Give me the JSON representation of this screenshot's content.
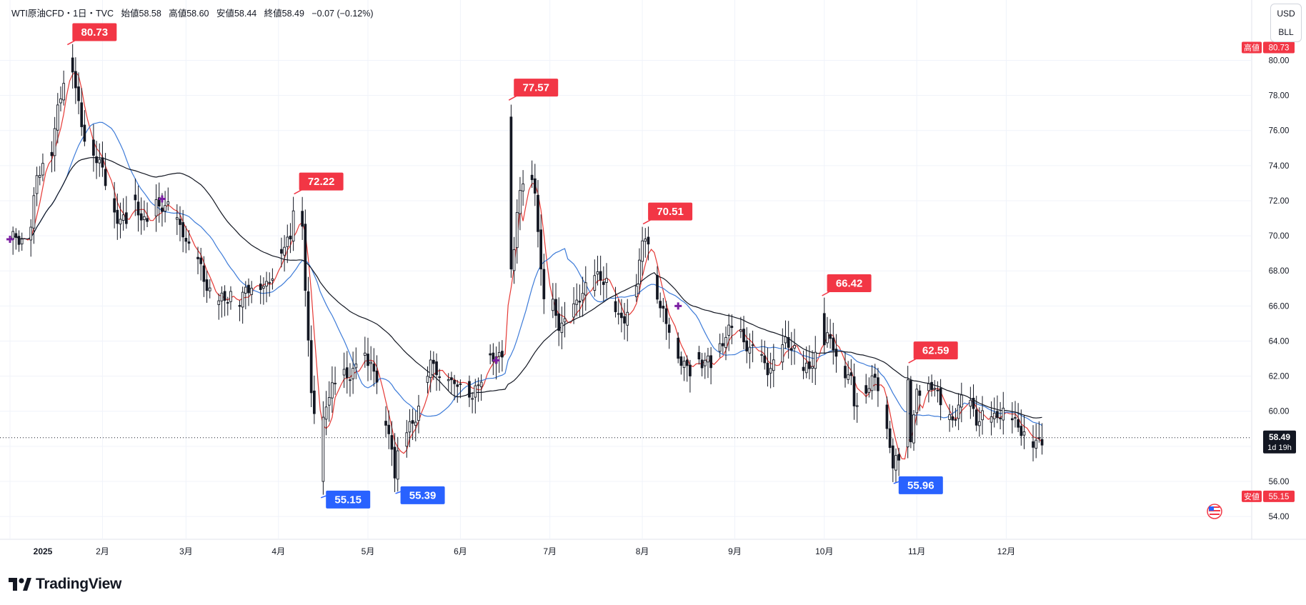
{
  "legend": {
    "symbol": "WTI原油CFD・1日・TVC",
    "open_label": "始値",
    "open": "58.58",
    "high_label": "高値",
    "high": "58.60",
    "low_label": "安値",
    "low": "58.44",
    "close_label": "終値",
    "close": "58.49",
    "change": "−0.07 (−0.12%)"
  },
  "units": {
    "currency": "USD",
    "unit": "BLL"
  },
  "brand": {
    "name": "TradingView"
  },
  "colors": {
    "up": "#131722",
    "down": "#131722",
    "ma_fast": "#e53935",
    "ma_mid": "#3d7bd8",
    "ma_slow": "#131722",
    "high_label": "#f23645",
    "low_label": "#2962ff",
    "marker": "#7b1fa2"
  },
  "chart_data": {
    "type": "candlestick",
    "x_labels": [
      {
        "label": "2025",
        "day": 0
      },
      {
        "label": "2月",
        "day": 31
      },
      {
        "label": "3月",
        "day": 59
      },
      {
        "label": "4月",
        "day": 90
      },
      {
        "label": "5月",
        "day": 120
      },
      {
        "label": "6月",
        "day": 151
      },
      {
        "label": "7月",
        "day": 181
      },
      {
        "label": "8月",
        "day": 212
      },
      {
        "label": "9月",
        "day": 243
      },
      {
        "label": "10月",
        "day": 273
      },
      {
        "label": "11月",
        "day": 304
      },
      {
        "label": "12月",
        "day": 334
      }
    ],
    "ylim": [
      52.7,
      82.3
    ],
    "y_ticks": [
      "54.00",
      "56.00",
      "58.00",
      "60.00",
      "62.00",
      "64.00",
      "66.00",
      "68.00",
      "70.00",
      "72.00",
      "74.00",
      "76.00",
      "78.00",
      "80.00"
    ],
    "current": {
      "value": 58.49,
      "label": "58.49",
      "countdown": "1d 19h"
    },
    "high_tag": {
      "label": "高値",
      "value": "80.73"
    },
    "low_tag": {
      "label": "安値",
      "value": "55.15"
    },
    "callouts": [
      {
        "label": "80.73",
        "kind": "high",
        "day": 19,
        "value": 80.73
      },
      {
        "label": "72.22",
        "kind": "high",
        "day": 95,
        "value": 72.22
      },
      {
        "label": "77.57",
        "kind": "high",
        "day": 167,
        "value": 77.57
      },
      {
        "label": "70.51",
        "kind": "high",
        "day": 212,
        "value": 70.51
      },
      {
        "label": "66.42",
        "kind": "high",
        "day": 272,
        "value": 66.42
      },
      {
        "label": "62.59",
        "kind": "high",
        "day": 301,
        "value": 62.59
      },
      {
        "label": "55.15",
        "kind": "low",
        "day": 104,
        "value": 55.15
      },
      {
        "label": "55.39",
        "kind": "low",
        "day": 129,
        "value": 55.39
      },
      {
        "label": "55.96",
        "kind": "low",
        "day": 296,
        "value": 55.96
      }
    ],
    "cross_markers": [
      {
        "day": 0,
        "value": 69.8
      },
      {
        "day": 51,
        "value": 72.1
      },
      {
        "day": 163,
        "value": 62.9
      },
      {
        "day": 224,
        "value": 66.0
      }
    ],
    "anchors": [
      [
        0,
        69.5
      ],
      [
        2,
        69.8
      ],
      [
        5,
        69.7
      ],
      [
        7,
        70.9
      ],
      [
        9,
        73.2
      ],
      [
        12,
        74.3
      ],
      [
        14,
        75.0
      ],
      [
        16,
        77.4
      ],
      [
        18,
        79.0
      ],
      [
        19,
        80.3
      ],
      [
        21,
        79.4
      ],
      [
        23,
        77.3
      ],
      [
        24,
        76.3
      ],
      [
        26,
        75.6
      ],
      [
        28,
        74.8
      ],
      [
        30,
        73.9
      ],
      [
        33,
        72.5
      ],
      [
        35,
        71.5
      ],
      [
        37,
        71.1
      ],
      [
        39,
        70.7
      ],
      [
        41,
        71.8
      ],
      [
        43,
        71.4
      ],
      [
        45,
        71.0
      ],
      [
        47,
        70.9
      ],
      [
        49,
        71.6
      ],
      [
        52,
        71.4
      ],
      [
        54,
        71.8
      ],
      [
        56,
        71.0
      ],
      [
        58,
        70.3
      ],
      [
        60,
        69.0
      ],
      [
        62,
        68.9
      ],
      [
        64,
        68.2
      ],
      [
        66,
        67.4
      ],
      [
        68,
        66.5
      ],
      [
        70,
        66.2
      ],
      [
        72,
        66.1
      ],
      [
        74,
        66.9
      ],
      [
        76,
        66.3
      ],
      [
        78,
        66.6
      ],
      [
        80,
        66.8
      ],
      [
        82,
        67.1
      ],
      [
        84,
        67.4
      ],
      [
        86,
        67.3
      ],
      [
        88,
        67.9
      ],
      [
        90,
        68.6
      ],
      [
        92,
        69.4
      ],
      [
        94,
        69.8
      ],
      [
        96,
        70.8
      ],
      [
        97,
        71.3
      ],
      [
        98,
        70.6
      ],
      [
        99,
        67.1
      ],
      [
        100,
        63.7
      ],
      [
        101,
        60.5
      ],
      [
        102,
        59.9
      ],
      [
        104,
        59.3
      ],
      [
        105,
        59.7
      ],
      [
        106,
        60.8
      ],
      [
        108,
        61.3
      ],
      [
        110,
        61.6
      ],
      [
        112,
        61.9
      ],
      [
        114,
        62.2
      ],
      [
        116,
        62.7
      ],
      [
        118,
        63.4
      ],
      [
        120,
        62.3
      ],
      [
        121,
        62.9
      ],
      [
        123,
        61.3
      ],
      [
        125,
        59.9
      ],
      [
        127,
        58.6
      ],
      [
        129,
        57.6
      ],
      [
        130,
        57.2
      ],
      [
        132,
        58.3
      ],
      [
        133,
        58.8
      ],
      [
        135,
        59.6
      ],
      [
        137,
        60.3
      ],
      [
        139,
        61.6
      ],
      [
        141,
        62.4
      ],
      [
        143,
        62.4
      ],
      [
        145,
        61.9
      ],
      [
        147,
        62.3
      ],
      [
        149,
        61.1
      ],
      [
        151,
        61.6
      ],
      [
        153,
        61.4
      ],
      [
        155,
        61.1
      ],
      [
        157,
        61.6
      ],
      [
        159,
        62.4
      ],
      [
        161,
        63.1
      ],
      [
        163,
        62.9
      ],
      [
        165,
        63.6
      ],
      [
        167,
        65.0
      ],
      [
        168,
        68.0
      ],
      [
        169,
        69.4
      ],
      [
        170,
        71.1
      ],
      [
        172,
        72.9
      ],
      [
        173,
        73.1
      ],
      [
        174,
        73.4
      ],
      [
        176,
        72.9
      ],
      [
        177,
        70.6
      ],
      [
        178,
        67.8
      ],
      [
        179,
        66.1
      ],
      [
        180,
        65.4
      ],
      [
        182,
        65.9
      ],
      [
        184,
        65.1
      ],
      [
        186,
        65.2
      ],
      [
        188,
        65.5
      ],
      [
        190,
        65.9
      ],
      [
        192,
        66.7
      ],
      [
        194,
        67.3
      ],
      [
        196,
        67.9
      ],
      [
        198,
        67.6
      ],
      [
        200,
        67.1
      ],
      [
        202,
        66.3
      ],
      [
        204,
        65.4
      ],
      [
        206,
        65.6
      ],
      [
        208,
        65.9
      ],
      [
        210,
        67.2
      ],
      [
        211,
        68.2
      ],
      [
        212,
        69.2
      ],
      [
        213,
        70.1
      ],
      [
        214,
        69.9
      ],
      [
        215,
        68.4
      ],
      [
        216,
        67.8
      ],
      [
        218,
        65.9
      ],
      [
        220,
        64.8
      ],
      [
        222,
        64.4
      ],
      [
        224,
        63.4
      ],
      [
        226,
        62.8
      ],
      [
        228,
        62.3
      ],
      [
        230,
        62.8
      ],
      [
        232,
        62.7
      ],
      [
        234,
        63.0
      ],
      [
        236,
        62.8
      ],
      [
        238,
        63.6
      ],
      [
        240,
        64.1
      ],
      [
        242,
        64.6
      ],
      [
        244,
        64.8
      ],
      [
        246,
        64.3
      ],
      [
        248,
        63.4
      ],
      [
        250,
        63.3
      ],
      [
        252,
        62.8
      ],
      [
        254,
        62.6
      ],
      [
        256,
        62.8
      ],
      [
        258,
        63.2
      ],
      [
        260,
        63.7
      ],
      [
        262,
        63.6
      ],
      [
        264,
        63.4
      ],
      [
        266,
        62.6
      ],
      [
        268,
        62.4
      ],
      [
        270,
        63.0
      ],
      [
        272,
        63.8
      ],
      [
        274,
        64.4
      ],
      [
        276,
        64.0
      ],
      [
        278,
        62.7
      ],
      [
        280,
        62.0
      ],
      [
        282,
        61.6
      ],
      [
        283,
        60.5
      ],
      [
        284,
        60.8
      ],
      [
        286,
        61.4
      ],
      [
        288,
        61.4
      ],
      [
        290,
        61.6
      ],
      [
        292,
        61.0
      ],
      [
        294,
        59.3
      ],
      [
        296,
        57.7
      ],
      [
        297,
        57.3
      ],
      [
        298,
        57.4
      ],
      [
        299,
        57.1
      ],
      [
        300,
        57.3
      ],
      [
        302,
        58.5
      ],
      [
        303,
        59.9
      ],
      [
        304,
        61.1
      ],
      [
        306,
        61.3
      ],
      [
        308,
        61.2
      ],
      [
        310,
        61.3
      ],
      [
        312,
        60.1
      ],
      [
        314,
        59.7
      ],
      [
        316,
        59.7
      ],
      [
        318,
        60.2
      ],
      [
        320,
        60.6
      ],
      [
        322,
        60.3
      ],
      [
        324,
        59.7
      ],
      [
        326,
        59.9
      ],
      [
        328,
        59.6
      ],
      [
        330,
        59.3
      ],
      [
        332,
        59.8
      ],
      [
        334,
        60.3
      ],
      [
        336,
        59.9
      ],
      [
        338,
        58.9
      ],
      [
        340,
        58.6
      ],
      [
        342,
        58.3
      ],
      [
        344,
        58.4
      ],
      [
        346,
        58.5
      ]
    ],
    "series": [
      {
        "name": "",
        "kind": "ma_fast",
        "period": 5
      },
      {
        "name": "",
        "kind": "ma_mid",
        "period": 20
      },
      {
        "name": "",
        "kind": "ma_slow",
        "period": 50
      }
    ]
  }
}
